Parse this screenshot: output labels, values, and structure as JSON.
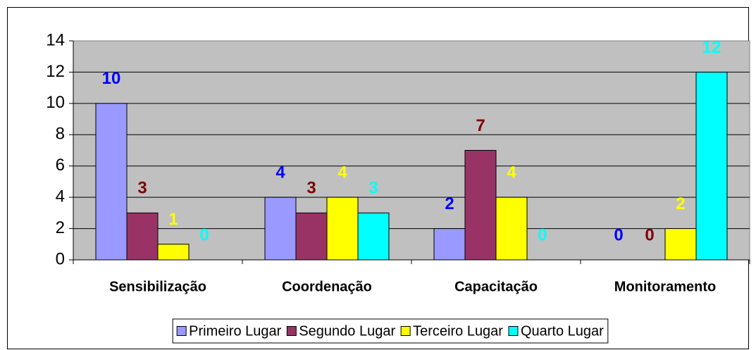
{
  "chart_data": {
    "type": "bar",
    "categories": [
      "Sensibilização",
      "Coordenação",
      "Capacitação",
      "Monitoramento"
    ],
    "series": [
      {
        "name": "Primeiro Lugar",
        "color": "#9999ff",
        "label_color": "#0000ff",
        "values": [
          10,
          4,
          2,
          0
        ]
      },
      {
        "name": "Segundo Lugar",
        "color": "#993366",
        "label_color": "#800000",
        "values": [
          3,
          3,
          7,
          0
        ]
      },
      {
        "name": "Terceiro Lugar",
        "color": "#ffff00",
        "label_color": "#ffff00",
        "values": [
          1,
          4,
          4,
          2
        ]
      },
      {
        "name": "Quarto Lugar",
        "color": "#00ffff",
        "label_color": "#00ffff",
        "values": [
          0,
          3,
          0,
          12
        ]
      }
    ],
    "ylim": [
      0,
      14
    ],
    "yticks": [
      0,
      2,
      4,
      6,
      8,
      10,
      12,
      14
    ],
    "grid": true,
    "legend": "bottom"
  }
}
